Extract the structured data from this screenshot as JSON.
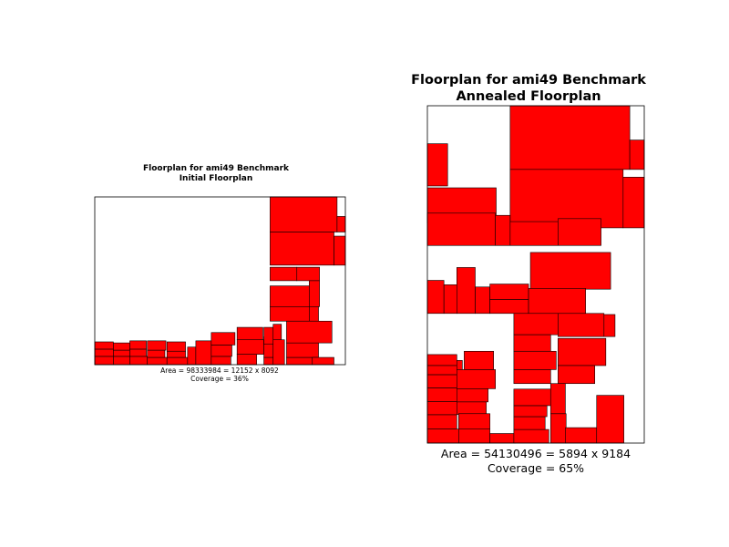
{
  "colors": {
    "block_fill": "#ff0000",
    "block_stroke": "#000000",
    "frame": "#000000",
    "background": "#ffffff"
  },
  "chart_data": [
    {
      "type": "rectangles",
      "title": "Floorplan for ami49 Benchmark",
      "subtitle": "Initial Floorplan",
      "caption_area": "Area = 98333984 = 12152 x 8092",
      "caption_coverage": "Coverage = 36%",
      "xlim": [
        0,
        12152
      ],
      "ylim": [
        0,
        8092
      ],
      "axes_visible": false,
      "blocks": [
        [
          8500,
          6400,
          3250,
          1700
        ],
        [
          11750,
          6400,
          400,
          750
        ],
        [
          8500,
          4800,
          3100,
          1600
        ],
        [
          11600,
          4800,
          550,
          1400
        ],
        [
          8500,
          4050,
          1300,
          650
        ],
        [
          9800,
          4050,
          1100,
          650
        ],
        [
          8500,
          2800,
          1900,
          1000
        ],
        [
          10400,
          2800,
          500,
          1250
        ],
        [
          8500,
          2100,
          1900,
          700
        ],
        [
          10400,
          2100,
          450,
          700
        ],
        [
          0,
          0,
          900,
          400
        ],
        [
          0,
          400,
          900,
          350
        ],
        [
          0,
          750,
          900,
          350
        ],
        [
          900,
          0,
          800,
          400
        ],
        [
          900,
          400,
          800,
          300
        ],
        [
          900,
          700,
          800,
          350
        ],
        [
          1700,
          0,
          850,
          400
        ],
        [
          1700,
          400,
          800,
          350
        ],
        [
          1700,
          750,
          800,
          400
        ],
        [
          2550,
          0,
          950,
          350
        ],
        [
          2550,
          350,
          850,
          350
        ],
        [
          2550,
          700,
          900,
          450
        ],
        [
          3500,
          0,
          1000,
          350
        ],
        [
          3500,
          350,
          900,
          300
        ],
        [
          3500,
          650,
          900,
          450
        ],
        [
          4500,
          0,
          400,
          850
        ],
        [
          4900,
          0,
          750,
          1150
        ],
        [
          5650,
          0,
          950,
          400
        ],
        [
          5650,
          400,
          1000,
          550
        ],
        [
          5650,
          950,
          1150,
          600
        ],
        [
          6900,
          0,
          950,
          500
        ],
        [
          6900,
          500,
          1300,
          700
        ],
        [
          6900,
          1200,
          1250,
          600
        ],
        [
          8200,
          0,
          450,
          350
        ],
        [
          8200,
          350,
          450,
          1000
        ],
        [
          8200,
          1000,
          450,
          800
        ],
        [
          8650,
          0,
          550,
          1200
        ],
        [
          8650,
          1200,
          400,
          750
        ],
        [
          9300,
          0,
          1250,
          350
        ],
        [
          9300,
          350,
          1550,
          700
        ],
        [
          9300,
          1050,
          2200,
          1050
        ],
        [
          10550,
          0,
          1050,
          350
        ]
      ]
    },
    {
      "type": "rectangles",
      "title": "Floorplan for ami49 Benchmark",
      "subtitle": "Annealed Floorplan",
      "caption_area": "Area = 54130496 = 5894 x 9184",
      "caption_coverage": "Coverage = 65%",
      "xlim": [
        0,
        5894
      ],
      "ylim": [
        0,
        9184
      ],
      "axes_visible": false,
      "blocks": [
        [
          2250,
          7450,
          3250,
          1734
        ],
        [
          5500,
          7450,
          394,
          800
        ],
        [
          0,
          7000,
          550,
          1150
        ],
        [
          0,
          5990,
          1870,
          960
        ],
        [
          2250,
          5860,
          3070,
          1590
        ],
        [
          5320,
          5860,
          574,
          1380
        ],
        [
          0,
          5380,
          1850,
          880
        ],
        [
          1850,
          5380,
          400,
          820
        ],
        [
          2250,
          5380,
          1300,
          650
        ],
        [
          3550,
          5380,
          1170,
          730
        ],
        [
          2800,
          4190,
          2180,
          1000
        ],
        [
          0,
          3530,
          450,
          900
        ],
        [
          450,
          3530,
          350,
          780
        ],
        [
          800,
          3530,
          500,
          1250
        ],
        [
          1300,
          3530,
          400,
          720
        ],
        [
          1700,
          3530,
          1050,
          380
        ],
        [
          1700,
          3910,
          1050,
          420
        ],
        [
          2750,
          3530,
          1550,
          680
        ],
        [
          2350,
          2950,
          1200,
          580
        ],
        [
          3550,
          2900,
          1250,
          630
        ],
        [
          4800,
          2900,
          300,
          600
        ],
        [
          2350,
          2500,
          1000,
          450
        ],
        [
          3550,
          2110,
          1300,
          740
        ],
        [
          2350,
          2000,
          1150,
          500
        ],
        [
          3550,
          1620,
          1000,
          490
        ],
        [
          2350,
          1620,
          1000,
          380
        ],
        [
          0,
          2110,
          800,
          300
        ],
        [
          0,
          1860,
          800,
          250
        ],
        [
          0,
          1500,
          800,
          360
        ],
        [
          0,
          1130,
          800,
          370
        ],
        [
          1000,
          2000,
          800,
          500
        ],
        [
          800,
          1850,
          150,
          400
        ],
        [
          800,
          1480,
          1050,
          520
        ],
        [
          0,
          770,
          800,
          360
        ],
        [
          800,
          1120,
          850,
          360
        ],
        [
          0,
          380,
          800,
          390
        ],
        [
          800,
          780,
          800,
          340
        ],
        [
          0,
          0,
          850,
          380
        ],
        [
          850,
          0,
          850,
          380
        ],
        [
          850,
          380,
          850,
          420
        ],
        [
          1700,
          0,
          700,
          260
        ],
        [
          2350,
          0,
          950,
          370
        ],
        [
          2350,
          370,
          850,
          350
        ],
        [
          2350,
          720,
          900,
          300
        ],
        [
          2350,
          1020,
          1000,
          450
        ],
        [
          3350,
          0,
          420,
          800
        ],
        [
          3350,
          800,
          400,
          820
        ],
        [
          3750,
          0,
          850,
          420
        ],
        [
          4600,
          0,
          740,
          1300
        ]
      ]
    }
  ]
}
